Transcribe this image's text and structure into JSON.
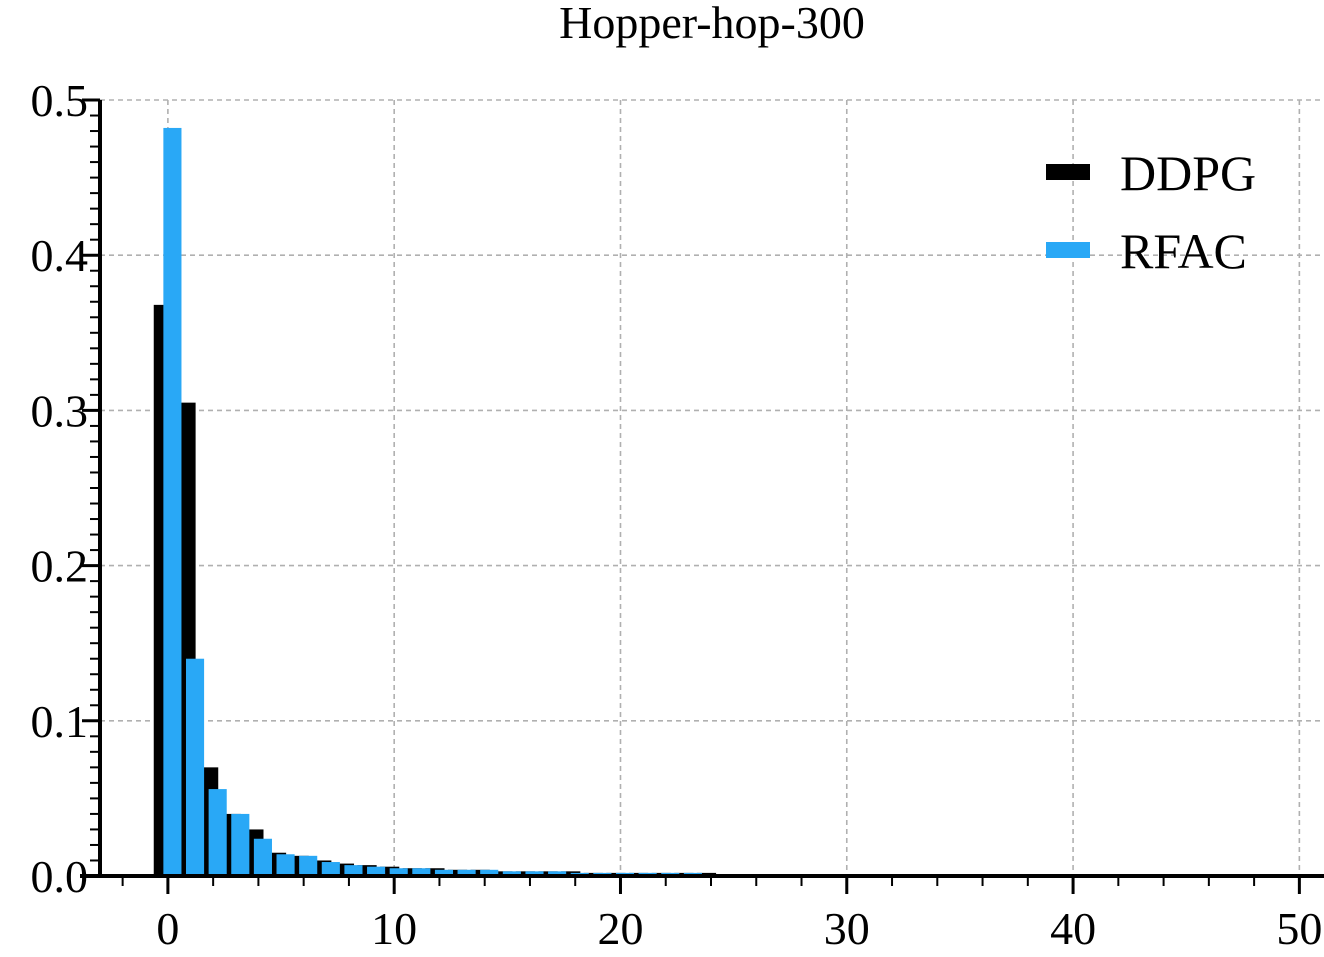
{
  "chart_data": {
    "type": "bar",
    "title": "Hopper-hop-300",
    "xlabel": "",
    "ylabel": "",
    "xlim": [
      -3,
      51
    ],
    "ylim": [
      0,
      0.5
    ],
    "x_ticks": [
      0,
      10,
      20,
      30,
      40,
      50
    ],
    "x_tick_labels": [
      "0",
      "10",
      "20",
      "30",
      "40",
      "50"
    ],
    "y_ticks": [
      0.0,
      0.1,
      0.2,
      0.3,
      0.4,
      0.5
    ],
    "y_tick_labels": [
      "0.0",
      "0.1",
      "0.2",
      "0.3",
      "0.4",
      "0.5"
    ],
    "grid": true,
    "legend_position": "top-right",
    "x": [
      0,
      1,
      2,
      3,
      4,
      5,
      6,
      7,
      8,
      9,
      10,
      11,
      12,
      13,
      14,
      15,
      16,
      17,
      18,
      19,
      20,
      21,
      22,
      23,
      24,
      25,
      26,
      27,
      28
    ],
    "series": [
      {
        "name": "DDPG",
        "color": "#000000",
        "values": [
          0.368,
          0.305,
          0.07,
          0.04,
          0.03,
          0.015,
          0.013,
          0.01,
          0.008,
          0.007,
          0.006,
          0.005,
          0.005,
          0.004,
          0.004,
          0.003,
          0.003,
          0.003,
          0.003,
          0.002,
          0.002,
          0.002,
          0.002,
          0.002,
          0.002,
          0.001,
          0.001,
          0.001,
          0.001
        ]
      },
      {
        "name": "RFAC",
        "color": "#29a8f6",
        "values": [
          0.482,
          0.14,
          0.056,
          0.04,
          0.024,
          0.014,
          0.013,
          0.009,
          0.007,
          0.006,
          0.005,
          0.005,
          0.004,
          0.004,
          0.004,
          0.003,
          0.003,
          0.003,
          0.002,
          0.002,
          0.002,
          0.002,
          0.002,
          0.002,
          0.001,
          0.001,
          0.001,
          0.001,
          0.001
        ]
      }
    ]
  }
}
